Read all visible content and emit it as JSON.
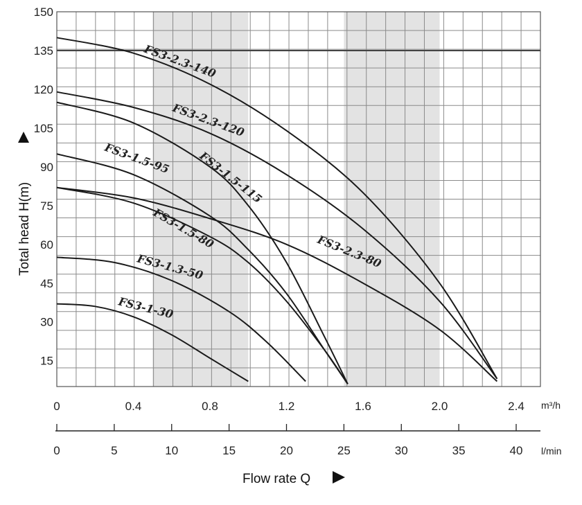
{
  "chart_data": {
    "type": "line",
    "title": "",
    "xlabel": "Flow rate Q",
    "ylabel": "Total head H(m)",
    "x_unit": "m³/h",
    "x2_unit": "l/min",
    "xlim": [
      0,
      2.5
    ],
    "ylim": [
      5,
      150
    ],
    "x_ticks": [
      "0",
      "0.4",
      "0.8",
      "1.2",
      "1.6",
      "2.0",
      "2.4"
    ],
    "x2_ticks": [
      "0",
      "5",
      "10",
      "15",
      "20",
      "25",
      "30",
      "35",
      "40"
    ],
    "y_ticks": [
      "15",
      "30",
      "45",
      "60",
      "75",
      "90",
      "105",
      "120",
      "135",
      "150"
    ],
    "shaded_ranges": [
      [
        0.5,
        1.0
      ],
      [
        1.5,
        2.0
      ]
    ],
    "reference_line_y": 135,
    "grid": true,
    "series": [
      {
        "name": "FS3-2.3-140",
        "x": [
          0,
          0.4,
          0.8,
          1.2,
          1.6,
          2.0,
          2.3
        ],
        "y": [
          140,
          134,
          122,
          104,
          80,
          45,
          8
        ]
      },
      {
        "name": "FS3-2.3-120",
        "x": [
          0,
          0.4,
          0.8,
          1.2,
          1.6,
          2.0,
          2.3
        ],
        "y": [
          119,
          113,
          103,
          87,
          66,
          38,
          8
        ]
      },
      {
        "name": "FS3-1.5-115",
        "x": [
          0,
          0.4,
          0.8,
          1.0,
          1.2,
          1.4,
          1.52
        ],
        "y": [
          115,
          107,
          90,
          75,
          53,
          24,
          6
        ]
      },
      {
        "name": "FS3-1.5-95",
        "x": [
          0,
          0.4,
          0.8,
          1.0,
          1.2,
          1.4,
          1.52
        ],
        "y": [
          95,
          87,
          71,
          58,
          41,
          19,
          6
        ]
      },
      {
        "name": "FS3-1.5-80",
        "x": [
          0,
          0.4,
          0.8,
          1.0,
          1.2,
          1.4,
          1.52
        ],
        "y": [
          82,
          76,
          63,
          53,
          38,
          19,
          6
        ]
      },
      {
        "name": "FS3-2.3-80",
        "x": [
          0,
          0.4,
          0.8,
          1.2,
          1.6,
          2.0,
          2.3
        ],
        "y": [
          82,
          78,
          70,
          60,
          45,
          27,
          7
        ]
      },
      {
        "name": "FS3-1.3-50",
        "x": [
          0,
          0.3,
          0.6,
          0.9,
          1.1,
          1.3
        ],
        "y": [
          55,
          53,
          46,
          34,
          22,
          7
        ]
      },
      {
        "name": "FS3-1-30",
        "x": [
          0,
          0.2,
          0.4,
          0.6,
          0.8,
          1.0
        ],
        "y": [
          37,
          36,
          32,
          25,
          16,
          7
        ]
      }
    ],
    "annotations": [
      "FS3-2.3-140",
      "FS3-2.3-120",
      "FS3-1.5-95",
      "FS3-1.5-115",
      "FS3-1.5-80",
      "FS3-2.3-80",
      "FS3-1.3-50",
      "FS3-1-30"
    ]
  }
}
